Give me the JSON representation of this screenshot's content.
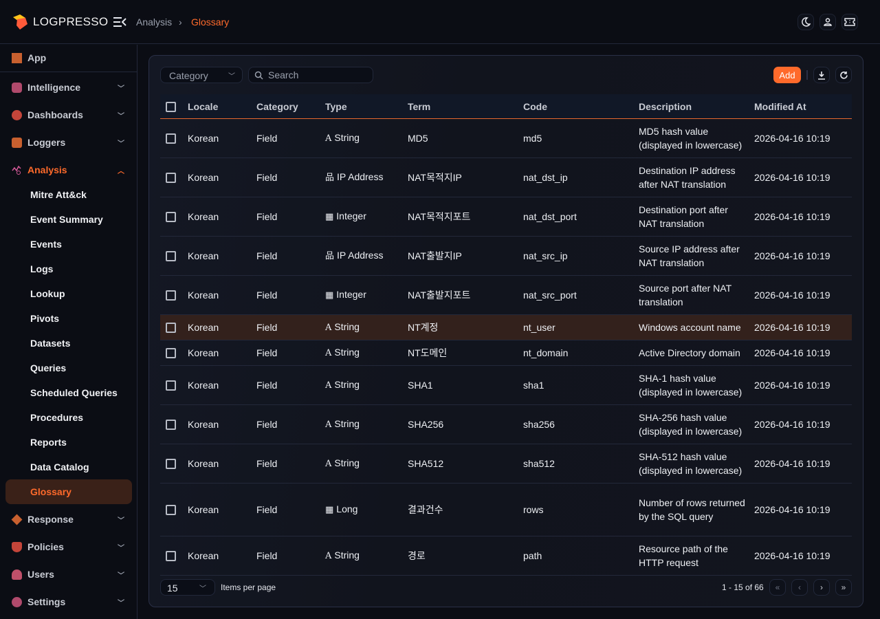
{
  "header": {
    "brand": "LOGPRESSO",
    "breadcrumb": [
      "Analysis",
      "Glossary"
    ]
  },
  "colors": {
    "accent": "#ff6a2b",
    "bg": "#0b0d14",
    "selected_row": "#33211c"
  },
  "sidebar": {
    "top": {
      "label": "App",
      "icon": "grid-icon"
    },
    "groups": [
      {
        "label": "Intelligence",
        "icon": "puzzle-icon"
      },
      {
        "label": "Dashboards",
        "icon": "pie-chart-icon"
      },
      {
        "label": "Loggers",
        "icon": "database-icon"
      },
      {
        "label": "Analysis",
        "icon": "analysis-icon"
      },
      {
        "label": "Response",
        "icon": "response-icon"
      },
      {
        "label": "Policies",
        "icon": "shield-icon"
      },
      {
        "label": "Users",
        "icon": "users-icon"
      },
      {
        "label": "Settings",
        "icon": "gear-icon"
      }
    ],
    "analysis_items": [
      "Mitre Att&ck",
      "Event Summary",
      "Events",
      "Logs",
      "Lookup",
      "Pivots",
      "Datasets",
      "Queries",
      "Scheduled Queries",
      "Procedures",
      "Reports",
      "Data Catalog",
      "Glossary"
    ]
  },
  "toolbar": {
    "category_placeholder": "Category",
    "search_placeholder": "Search",
    "add_label": "Add"
  },
  "table": {
    "columns": [
      "Locale",
      "Category",
      "Type",
      "Term",
      "Code",
      "Description",
      "Modified At"
    ],
    "rows": [
      {
        "locale": "Korean",
        "category": "Field",
        "type": "String",
        "term": "MD5",
        "code": "md5",
        "description": "MD5 hash value (displayed in lowercase)",
        "modified": "2026-04-16 10:19"
      },
      {
        "locale": "Korean",
        "category": "Field",
        "type": "IP Address",
        "term": "NAT목적지IP",
        "code": "nat_dst_ip",
        "description": "Destination IP address after NAT translation",
        "modified": "2026-04-16 10:19"
      },
      {
        "locale": "Korean",
        "category": "Field",
        "type": "Integer",
        "term": "NAT목적지포트",
        "code": "nat_dst_port",
        "description": "Destination port after NAT translation",
        "modified": "2026-04-16 10:19"
      },
      {
        "locale": "Korean",
        "category": "Field",
        "type": "IP Address",
        "term": "NAT출발지IP",
        "code": "nat_src_ip",
        "description": "Source IP address after NAT translation",
        "modified": "2026-04-16 10:19"
      },
      {
        "locale": "Korean",
        "category": "Field",
        "type": "Integer",
        "term": "NAT출발지포트",
        "code": "nat_src_port",
        "description": "Source port after NAT translation",
        "modified": "2026-04-16 10:19"
      },
      {
        "locale": "Korean",
        "category": "Field",
        "type": "String",
        "term": "NT계정",
        "code": "nt_user",
        "description": "Windows account name",
        "modified": "2026-04-16 10:19"
      },
      {
        "locale": "Korean",
        "category": "Field",
        "type": "String",
        "term": "NT도메인",
        "code": "nt_domain",
        "description": "Active Directory domain",
        "modified": "2026-04-16 10:19"
      },
      {
        "locale": "Korean",
        "category": "Field",
        "type": "String",
        "term": "SHA1",
        "code": "sha1",
        "description": "SHA-1 hash value (displayed in lowercase)",
        "modified": "2026-04-16 10:19"
      },
      {
        "locale": "Korean",
        "category": "Field",
        "type": "String",
        "term": "SHA256",
        "code": "sha256",
        "description": "SHA-256 hash value (displayed in lowercase)",
        "modified": "2026-04-16 10:19"
      },
      {
        "locale": "Korean",
        "category": "Field",
        "type": "String",
        "term": "SHA512",
        "code": "sha512",
        "description": "SHA-512 hash value (displayed in lowercase)",
        "modified": "2026-04-16 10:19"
      },
      {
        "locale": "Korean",
        "category": "Field",
        "type": "Long",
        "term": "결과건수",
        "code": "rows",
        "description": "Number of rows returned by the SQL query",
        "modified": "2026-04-16 10:19"
      },
      {
        "locale": "Korean",
        "category": "Field",
        "type": "String",
        "term": "경로",
        "code": "path",
        "description": "Resource path of the HTTP request",
        "modified": "2026-04-16 10:19"
      }
    ]
  },
  "pagination": {
    "per_page": "15",
    "per_page_label": "Items per page",
    "range": "1 - 15 of 66"
  }
}
